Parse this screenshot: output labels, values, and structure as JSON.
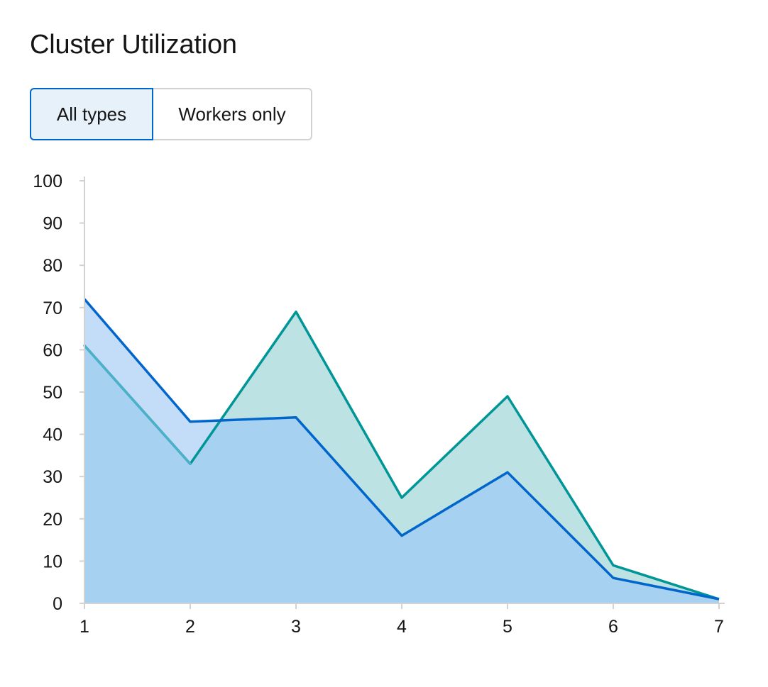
{
  "header": {
    "title": "Cluster Utilization"
  },
  "toggle": {
    "options": [
      "All types",
      "Workers only"
    ],
    "selected": "All types"
  },
  "colors": {
    "all_types_line": "#0066cc",
    "all_types_fill": "#c3dcf8",
    "workers_line": "#009596",
    "workers_line_light": "#4cb1c8",
    "workers_fill": "#bde2e3",
    "overlap_fill": "#a6d1f0",
    "axis": "#d2d2d2",
    "selected_bg": "#e7f1fa",
    "selected_border": "#0066cc"
  },
  "chart_data": {
    "type": "area",
    "x": [
      1,
      2,
      3,
      4,
      5,
      6,
      7
    ],
    "xlim": [
      1,
      7
    ],
    "ylim": [
      0,
      100
    ],
    "y_ticks": [
      0,
      10,
      20,
      30,
      40,
      50,
      60,
      70,
      80,
      90,
      100
    ],
    "x_ticks": [
      1,
      2,
      3,
      4,
      5,
      6,
      7
    ],
    "grid": false,
    "title": "",
    "xlabel": "",
    "ylabel": "",
    "series": [
      {
        "values": [
          72,
          43,
          44,
          16,
          31,
          6,
          1
        ]
      },
      {
        "values": [
          61,
          33,
          69,
          25,
          49,
          9,
          1
        ]
      }
    ]
  }
}
